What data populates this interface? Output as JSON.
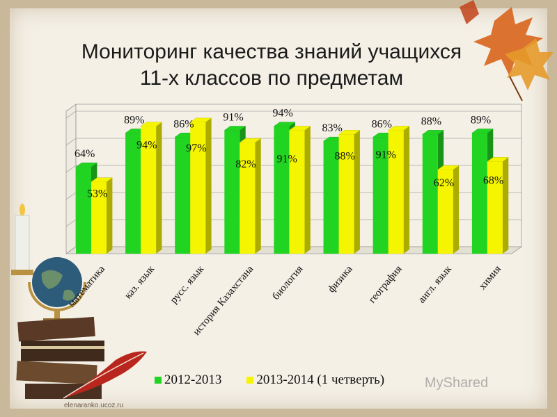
{
  "page": {
    "title_line1": "Мониторинг качества знаний учащихся",
    "title_line2": "11-х классов  по предметам",
    "watermark": "MyShared",
    "site": "elenaranko.ucoz.ru"
  },
  "colors": {
    "series1": "#22d422",
    "series2": "#f5f500",
    "background": "#f4f0e6"
  },
  "decorations": [
    "candle",
    "globe",
    "books",
    "quill-feather",
    "autumn-leaves"
  ],
  "chart_data": {
    "type": "bar",
    "categories": [
      "математика",
      "каз. язык",
      "русс. язык",
      "история Казахстана",
      "биология",
      "физика",
      "география",
      "англ. язык",
      "химия"
    ],
    "series": [
      {
        "name": "2012-2013",
        "values": [
          64,
          89,
          86,
          91,
          94,
          83,
          86,
          88,
          89
        ]
      },
      {
        "name": "2013-2014 (1 четверть)",
        "values": [
          53,
          94,
          97,
          82,
          91,
          88,
          91,
          62,
          68
        ]
      }
    ],
    "value_suffix": "%",
    "ylim": [
      0,
      100
    ],
    "grid": true,
    "legend": "bottom"
  }
}
